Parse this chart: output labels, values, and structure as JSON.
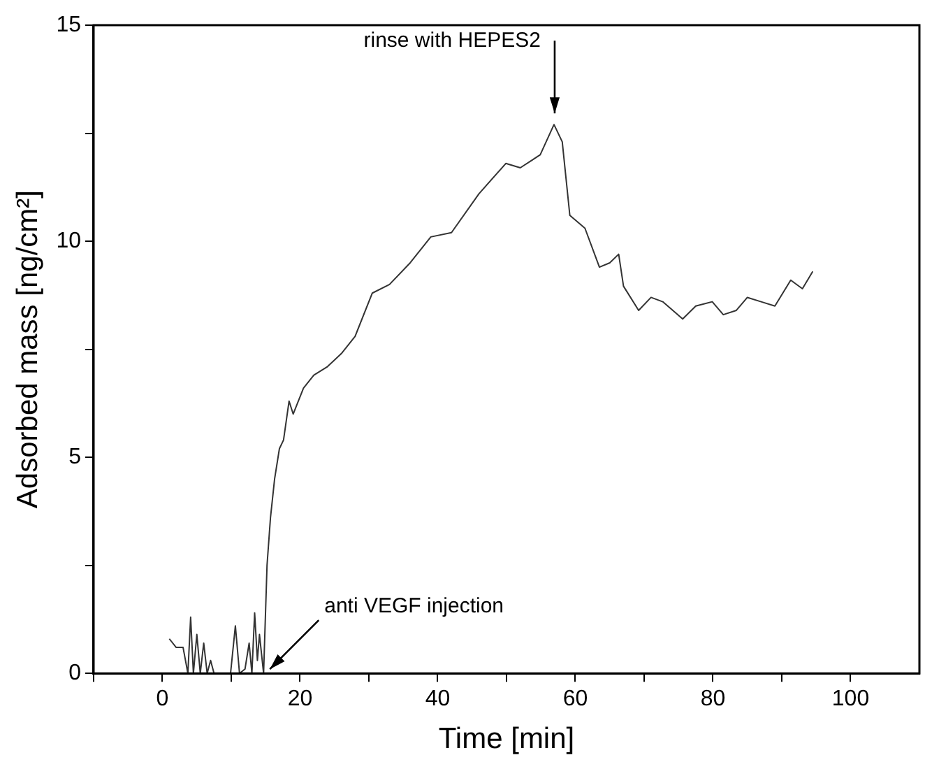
{
  "chart_data": {
    "type": "line",
    "xlabel": "Time [min]",
    "ylabel": "Adsorbed mass [ng/cm²]",
    "xlim": [
      -10,
      110
    ],
    "xticks": [
      {
        "value": -10,
        "label": null
      },
      0,
      {
        "value": 10,
        "label": null
      },
      20,
      {
        "value": 30,
        "label": null
      },
      40,
      {
        "value": 50,
        "label": null
      },
      60,
      {
        "value": 70,
        "label": null
      },
      80,
      {
        "value": 90,
        "label": null
      },
      100
    ],
    "ylim": [
      0,
      15
    ],
    "yticks": [
      0,
      {
        "value": 2.5,
        "label": null
      },
      5,
      {
        "value": 7.5,
        "label": null
      },
      10,
      {
        "value": 12.5,
        "label": null
      },
      15
    ],
    "grid": false,
    "legend": false,
    "marker": "none",
    "line_style": "solid",
    "series": [
      {
        "color": "#333333",
        "x": [
          1,
          2,
          3,
          3.7,
          4.1,
          4.5,
          5,
          5.5,
          6,
          6.5,
          7,
          7.5,
          9.9,
          10.6,
          11.2,
          12,
          12.6,
          13,
          13.4,
          13.8,
          14.1,
          14.7,
          15.2,
          15.7,
          16.3,
          17,
          17.6,
          18.4,
          19,
          19.5,
          20.5,
          22,
          24,
          26,
          28,
          30.5,
          33,
          36,
          39,
          42,
          46,
          49.9,
          52,
          54.9,
          56.9,
          58.1,
          59.2,
          61.4,
          63.5,
          65,
          66.3,
          67,
          69.2,
          71,
          72.7,
          75.6,
          77.5,
          79.9,
          81.5,
          83.4,
          85,
          87,
          89,
          91.3,
          93,
          94.5
        ],
        "values": [
          0.8,
          0.6,
          0.6,
          0,
          1.3,
          0,
          0.9,
          0,
          0.7,
          0,
          0.3,
          0,
          0,
          1.1,
          0,
          0.1,
          0.7,
          0,
          1.4,
          0.3,
          0.9,
          0,
          2.5,
          3.6,
          4.5,
          5.2,
          5.4,
          6.3,
          6,
          6.2,
          6.6,
          6.9,
          7.1,
          7.4,
          7.8,
          8.8,
          9,
          9.5,
          10.1,
          10.2,
          11.1,
          11.8,
          11.7,
          12,
          12.7,
          12.3,
          10.6,
          10.3,
          9.4,
          9.5,
          9.7,
          8.96,
          8.4,
          8.7,
          8.6,
          8.2,
          8.5,
          8.6,
          8.3,
          8.4,
          8.7,
          8.6,
          8.5,
          9.1,
          8.9,
          9.3
        ]
      }
    ],
    "annotations": [
      {
        "text": "rinse with HEPES2",
        "x": 57,
        "y": 12.7
      },
      {
        "text": "anti VEGF injection",
        "x": 15,
        "y": 0
      }
    ]
  }
}
